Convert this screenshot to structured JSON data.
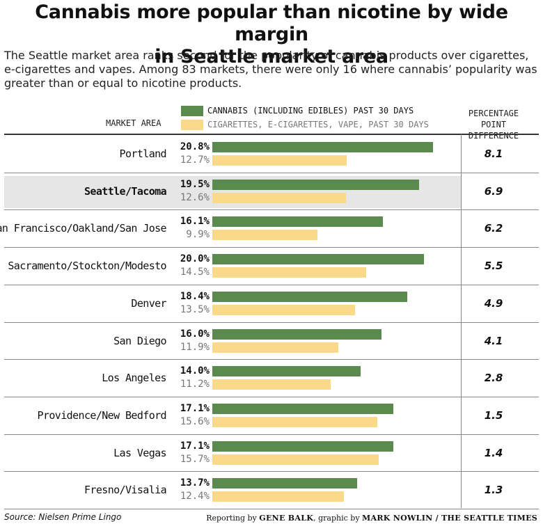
{
  "title_line1": "Cannabis more popular than nicotine by wide margin",
  "title_line2": "in Seattle market area",
  "subtitle_line1": "The Seattle market area ranks second for the popularity of cannabis products over cigarettes,",
  "subtitle_line2": "e-cigarettes and vapes. Among 83 markets, there were only 16 where cannabis’ popularity was",
  "subtitle_line3": "greater than or equal to nicotine products.",
  "header": {
    "market_area": "MARKET AREA",
    "pct_line1": "PERCENTAGE",
    "pct_line2": "POINT DIFFERENCE"
  },
  "legend": {
    "cannabis": "CANNABIS (INCLUDING EDIBLES) PAST 30 DAYS",
    "nicotine": "CIGARETTES, E-CIGARETTES, VAPE, PAST 30 DAYS"
  },
  "colors": {
    "cannabis": "#5b8a4e",
    "nicotine": "#fbd98b",
    "highlight": "#e6e6e6"
  },
  "chart_data": {
    "type": "bar",
    "orientation": "horizontal",
    "categories": [
      "Portland",
      "Seattle/Tacoma",
      "San Francisco/Oakland/San Jose",
      "Sacramento/Stockton/Modesto",
      "Denver",
      "San Diego",
      "Los Angeles",
      "Providence/New Bedford",
      "Las Vegas",
      "Fresno/Visalia"
    ],
    "series": [
      {
        "name": "CANNABIS (INCLUDING EDIBLES) PAST 30 DAYS",
        "values": [
          20.8,
          19.5,
          16.1,
          20.0,
          18.4,
          16.0,
          14.0,
          17.1,
          17.1,
          13.7
        ]
      },
      {
        "name": "CIGARETTES, E-CIGARETTES, VAPE, PAST 30 DAYS",
        "values": [
          12.7,
          12.6,
          9.9,
          14.5,
          13.5,
          11.9,
          11.2,
          15.6,
          15.7,
          12.4
        ]
      }
    ],
    "cannabis_labels": [
      "20.8%",
      "19.5%",
      "16.1%",
      "20.0%",
      "18.4%",
      "16.0%",
      "14.0%",
      "17.1%",
      "17.1%",
      "13.7%"
    ],
    "nicotine_labels": [
      "12.7%",
      "12.6%",
      "9.9%",
      "14.5%",
      "13.5%",
      "11.9%",
      "11.2%",
      "15.6%",
      "15.7%",
      "12.4%"
    ],
    "differences": [
      "8.1",
      "6.9",
      "6.2",
      "5.5",
      "4.9",
      "4.1",
      "2.8",
      "1.5",
      "1.4",
      "1.3"
    ],
    "highlight": "Seattle/Tacoma",
    "xlim": [
      0,
      20.8
    ]
  },
  "source": "Source: Nielsen Prime Lingo",
  "credit": {
    "prefix": "Reporting by ",
    "reporter": "GENE BALK",
    "mid": ", graphic by ",
    "artist": "MARK NOWLIN / THE SEATTLE TIMES"
  }
}
